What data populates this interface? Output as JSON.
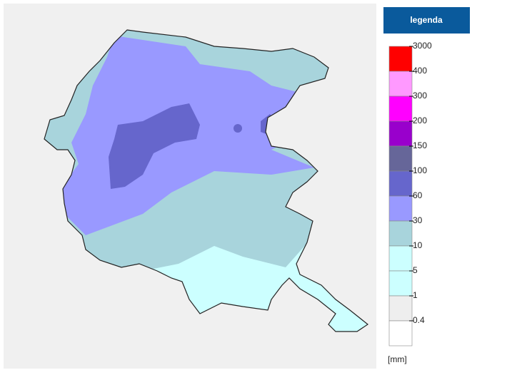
{
  "legend": {
    "title": "legenda",
    "unit": "[mm]",
    "items": [
      {
        "label": 3000,
        "color": "#ff0000"
      },
      {
        "label": 400,
        "color": "#ff99ff"
      },
      {
        "label": 300,
        "color": "#ff00ff"
      },
      {
        "label": 200,
        "color": "#9900cc"
      },
      {
        "label": 150,
        "color": "#666699"
      },
      {
        "label": 100,
        "color": "#6666cc"
      },
      {
        "label": 60,
        "color": "#9999ff"
      },
      {
        "label": 30,
        "color": "#a8d4dc"
      },
      {
        "label": 10,
        "color": "#ccffff"
      },
      {
        "label": 5,
        "color": "#ccffff"
      },
      {
        "label": 1,
        "color": "#eeeeee"
      },
      {
        "label": 0.4,
        "color": "#ffffff"
      }
    ]
  }
}
